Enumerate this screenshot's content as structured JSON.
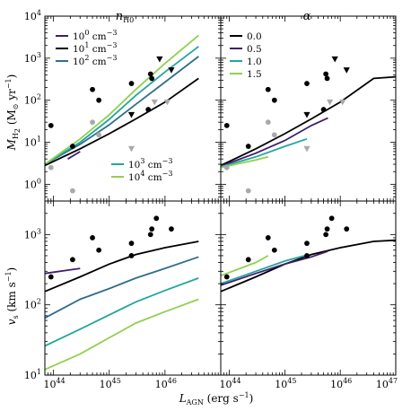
{
  "colors": {
    "purple": "#3f1f6e",
    "black": "#000000",
    "teal_blue": "#2f6e8e",
    "teal": "#23a69a",
    "lime": "#8fd14f",
    "obs_black": "#000000",
    "obs_grey": "#a9a9a9"
  },
  "panel_titles": {
    "left": "n",
    "left_sub": "H0",
    "right": "α"
  },
  "axes_labels": {
    "x_main": "L",
    "x_sub": "AGN",
    "x_units": " (erg s",
    "x_units_sup": "−1",
    "x_close": ")",
    "y_top_main": "M",
    "y_top_sub": "H",
    "y_top_sub2": "2",
    "y_top_units": " (M",
    "y_top_units_sun": "⊙",
    "y_top_units_rest": " yr",
    "y_top_units_sup": "−1",
    "y_top_close": ")",
    "y_bot_main": "v",
    "y_bot_sub": "s",
    "y_bot_units": " (km s",
    "y_bot_units_sup": "−1",
    "y_bot_close": ")"
  },
  "tick_labels": {
    "x": [
      {
        "base": "10",
        "exp": "44"
      },
      {
        "base": "10",
        "exp": "45"
      },
      {
        "base": "10",
        "exp": "46"
      },
      {
        "base": "10",
        "exp": "47"
      }
    ],
    "y_top": [
      {
        "base": "10",
        "exp": "0"
      },
      {
        "base": "10",
        "exp": "1"
      },
      {
        "base": "10",
        "exp": "2"
      },
      {
        "base": "10",
        "exp": "3"
      },
      {
        "base": "10",
        "exp": "4"
      }
    ],
    "y_bot": [
      {
        "base": "10",
        "exp": "1"
      },
      {
        "base": "10",
        "exp": "2"
      },
      {
        "base": "10",
        "exp": "3"
      }
    ]
  },
  "legends": {
    "left_a": [
      {
        "base": "10",
        "exp": "0",
        "unit": " cm",
        "unit_exp": "−3",
        "color_key": "purple"
      },
      {
        "base": "10",
        "exp": "1",
        "unit": " cm",
        "unit_exp": "−3",
        "color_key": "black"
      },
      {
        "base": "10",
        "exp": "2",
        "unit": " cm",
        "unit_exp": "−3",
        "color_key": "teal_blue"
      }
    ],
    "left_b": [
      {
        "base": "10",
        "exp": "3",
        "unit": " cm",
        "unit_exp": "−3",
        "color_key": "teal"
      },
      {
        "base": "10",
        "exp": "4",
        "unit": " cm",
        "unit_exp": "−3",
        "color_key": "lime"
      }
    ],
    "right": [
      {
        "label": "0.0",
        "color_key": "black"
      },
      {
        "label": "0.5",
        "color_key": "purple"
      },
      {
        "label": "1.0",
        "color_key": "teal"
      },
      {
        "label": "1.5",
        "color_key": "lime"
      }
    ]
  },
  "chart_data": [
    {
      "panel": "top-left",
      "type": "line",
      "title": "n_H0",
      "xlabel": "L_AGN (erg s^-1)",
      "ylabel": "M_H2 (M_sun yr^-1)",
      "xscale": "log",
      "yscale": "log",
      "xlim": [
        7e+43,
        1e+47
      ],
      "ylim": [
        0.4,
        10000
      ],
      "series": [
        {
          "name": "10^0 cm^-3",
          "color_key": "purple",
          "x": [
            1.8e+44,
            3e+44
          ],
          "y": [
            4,
            6
          ]
        },
        {
          "name": "10^1 cm^-3",
          "color_key": "black",
          "x": [
            7e+43,
            3e+44,
            1e+45,
            3e+45,
            1e+46,
            4e+46
          ],
          "y": [
            2.8,
            7,
            16,
            36,
            90,
            330
          ]
        },
        {
          "name": "10^2 cm^-3",
          "color_key": "teal_blue",
          "x": [
            7e+43,
            3e+44,
            1e+45,
            3e+45,
            1e+46,
            4e+46
          ],
          "y": [
            3,
            9,
            26,
            80,
            270,
            1100
          ]
        },
        {
          "name": "10^3 cm^-3",
          "color_key": "teal",
          "x": [
            7e+43,
            3e+44,
            1e+45,
            3e+45,
            1e+46,
            4e+46
          ],
          "y": [
            3,
            10,
            35,
            130,
            470,
            1900
          ]
        },
        {
          "name": "10^4 cm^-3",
          "color_key": "lime",
          "x": [
            7e+43,
            3e+44,
            1e+45,
            3e+45,
            1e+46,
            4e+46
          ],
          "y": [
            3,
            12,
            45,
            180,
            750,
            3500
          ]
        }
      ],
      "observations": [
        {
          "x": 9e+43,
          "y": 25,
          "marker": "circle",
          "color_key": "obs_black"
        },
        {
          "x": 2.2e+44,
          "y": 8,
          "marker": "circle",
          "color_key": "obs_black"
        },
        {
          "x": 5e+44,
          "y": 180,
          "marker": "circle",
          "color_key": "obs_black"
        },
        {
          "x": 6.5e+44,
          "y": 100,
          "marker": "circle",
          "color_key": "obs_black"
        },
        {
          "x": 2.5e+45,
          "y": 250,
          "marker": "circle",
          "color_key": "obs_black"
        },
        {
          "x": 5.5e+45,
          "y": 420,
          "marker": "circle",
          "color_key": "obs_black"
        },
        {
          "x": 5.8e+45,
          "y": 330,
          "marker": "circle",
          "color_key": "obs_black"
        },
        {
          "x": 5e+45,
          "y": 60,
          "marker": "circle",
          "color_key": "obs_black"
        },
        {
          "x": 9e+43,
          "y": 2.5,
          "marker": "circle",
          "color_key": "obs_grey"
        },
        {
          "x": 2.2e+44,
          "y": 0.7,
          "marker": "circle",
          "color_key": "obs_grey"
        },
        {
          "x": 5e+44,
          "y": 30,
          "marker": "circle",
          "color_key": "obs_grey"
        },
        {
          "x": 6.5e+44,
          "y": 15,
          "marker": "circle",
          "color_key": "obs_grey"
        },
        {
          "x": 2.5e+45,
          "y": 45,
          "marker": "triangle",
          "color_key": "obs_black"
        },
        {
          "x": 8e+45,
          "y": 950,
          "marker": "triangle",
          "color_key": "obs_black"
        },
        {
          "x": 1.3e+46,
          "y": 520,
          "marker": "triangle",
          "color_key": "obs_black"
        },
        {
          "x": 2.5e+45,
          "y": 7,
          "marker": "triangle",
          "color_key": "obs_grey"
        },
        {
          "x": 6.5e+45,
          "y": 90,
          "marker": "triangle",
          "color_key": "obs_grey"
        },
        {
          "x": 1.1e+46,
          "y": 90,
          "marker": "triangle",
          "color_key": "obs_grey"
        }
      ]
    },
    {
      "panel": "top-right",
      "type": "line",
      "title": "alpha",
      "xscale": "log",
      "yscale": "log",
      "xlim": [
        7e+43,
        1e+47
      ],
      "ylim": [
        0.4,
        10000
      ],
      "series": [
        {
          "name": "0.0",
          "color_key": "black",
          "x": [
            7e+43,
            3e+44,
            1e+45,
            3e+45,
            1e+46,
            4e+46,
            1e+47
          ],
          "y": [
            2.8,
            7,
            16,
            36,
            90,
            330,
            360
          ]
        },
        {
          "name": "0.5",
          "color_key": "purple",
          "x": [
            7e+43,
            3e+44,
            1e+45,
            3e+45,
            6e+45
          ],
          "y": [
            2.7,
            5.5,
            11,
            25,
            38
          ]
        },
        {
          "name": "1.0",
          "color_key": "teal",
          "x": [
            7e+43,
            3e+44,
            1e+45,
            2.5e+45
          ],
          "y": [
            2.6,
            4.5,
            8,
            12
          ]
        },
        {
          "name": "1.5",
          "color_key": "lime",
          "x": [
            7e+43,
            3e+44,
            5e+44
          ],
          "y": [
            2.5,
            3.8,
            4.5
          ]
        }
      ],
      "observations": "same as top-left"
    },
    {
      "panel": "bottom-left",
      "type": "line",
      "ylabel": "v_s (km s^-1)",
      "xscale": "log",
      "yscale": "log",
      "xlim": [
        7e+43,
        1e+47
      ],
      "ylim": [
        10,
        3000
      ],
      "series": [
        {
          "name": "10^0 cm^-3",
          "color_key": "purple",
          "x": [
            7e+43,
            3e+44
          ],
          "y": [
            280,
            330
          ]
        },
        {
          "name": "10^1 cm^-3",
          "color_key": "black",
          "x": [
            7e+43,
            3e+44,
            1e+45,
            3e+45,
            1e+46,
            4e+46
          ],
          "y": [
            155,
            250,
            380,
            520,
            650,
            800
          ]
        },
        {
          "name": "10^2 cm^-3",
          "color_key": "teal_blue",
          "x": [
            7e+43,
            3e+44,
            1e+45,
            3e+45,
            1e+46,
            4e+46
          ],
          "y": [
            65,
            120,
            170,
            240,
            330,
            480
          ]
        },
        {
          "name": "10^3 cm^-3",
          "color_key": "teal",
          "x": [
            7e+43,
            3e+44,
            1e+45,
            3e+45,
            1e+46,
            4e+46
          ],
          "y": [
            26,
            45,
            72,
            110,
            160,
            240
          ]
        },
        {
          "name": "10^4 cm^-3",
          "color_key": "lime",
          "x": [
            7e+43,
            3e+44,
            1e+45,
            3e+45,
            1e+46,
            4e+46
          ],
          "y": [
            12,
            20,
            34,
            55,
            80,
            120
          ]
        }
      ],
      "observations": [
        {
          "x": 9e+43,
          "y": 250
        },
        {
          "x": 2.2e+44,
          "y": 440
        },
        {
          "x": 5e+44,
          "y": 900
        },
        {
          "x": 6.5e+44,
          "y": 600
        },
        {
          "x": 2.5e+45,
          "y": 750
        },
        {
          "x": 2.5e+45,
          "y": 500
        },
        {
          "x": 5.5e+45,
          "y": 1000
        },
        {
          "x": 5.8e+45,
          "y": 1200
        },
        {
          "x": 7e+45,
          "y": 1700
        },
        {
          "x": 1.3e+46,
          "y": 1200
        }
      ]
    },
    {
      "panel": "bottom-right",
      "type": "line",
      "xscale": "log",
      "yscale": "log",
      "xlim": [
        7e+43,
        1e+47
      ],
      "ylim": [
        10,
        3000
      ],
      "series": [
        {
          "name": "0.0",
          "color_key": "black",
          "x": [
            7e+43,
            3e+44,
            1e+45,
            3e+45,
            1e+46,
            4e+46,
            1e+47
          ],
          "y": [
            155,
            250,
            380,
            520,
            650,
            800,
            830
          ]
        },
        {
          "name": "0.5",
          "color_key": "purple",
          "x": [
            7e+43,
            3e+44,
            1e+45,
            3e+45,
            6e+45
          ],
          "y": [
            190,
            280,
            380,
            480,
            580
          ]
        },
        {
          "name": "1.0",
          "color_key": "teal",
          "x": [
            7e+43,
            3e+44,
            1e+45,
            2.5e+45
          ],
          "y": [
            200,
            300,
            420,
            510
          ]
        },
        {
          "name": "1.5",
          "color_key": "lime",
          "x": [
            7e+43,
            3e+44,
            5e+44
          ],
          "y": [
            260,
            400,
            500
          ]
        }
      ],
      "observations": "same as bottom-left"
    }
  ]
}
